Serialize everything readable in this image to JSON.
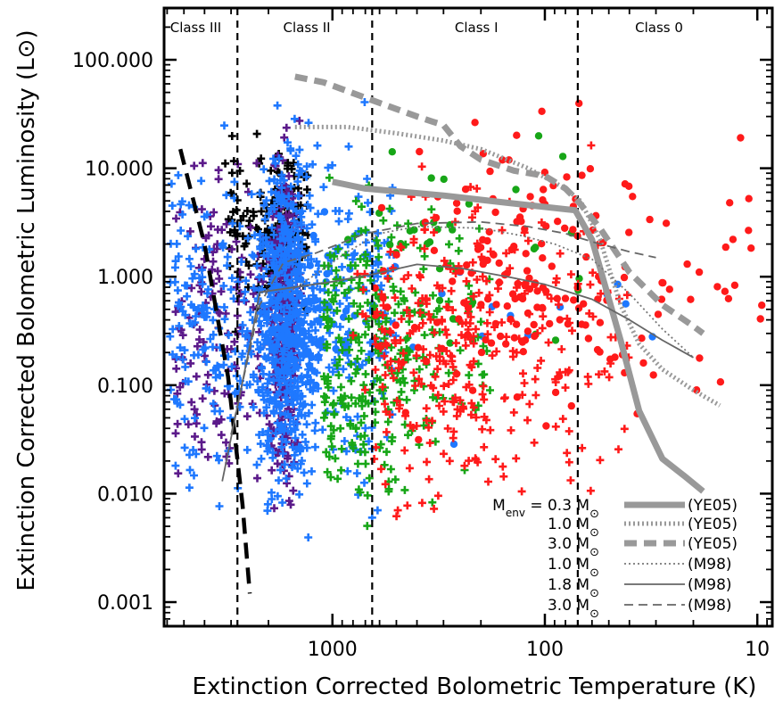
{
  "chart_data": {
    "type": "scatter",
    "title": "",
    "xlabel": "Extinction Corrected Bolometric Temperature (K)",
    "ylabel": "Extinction Corrected Bolometric Luminosity (L⊙)",
    "x_scale": "log",
    "x_reversed": true,
    "y_scale": "log",
    "xlim": [
      6200,
      8.5
    ],
    "ylim": [
      0.0006,
      300
    ],
    "x_ticks": [
      1000,
      100,
      10
    ],
    "x_tick_labels": [
      "1000",
      "100",
      "10"
    ],
    "y_ticks": [
      0.001,
      0.01,
      0.1,
      1,
      10,
      100
    ],
    "y_tick_labels": [
      "0.001",
      "0.010",
      "0.100",
      "1.000",
      "10.000",
      "100.000"
    ],
    "class_boundaries_K": [
      2800,
      650,
      70
    ],
    "class_labels": [
      {
        "text": "Class III",
        "tbol": 4400
      },
      {
        "text": "Class II",
        "tbol": 1320
      },
      {
        "text": "Class I",
        "tbol": 210
      },
      {
        "text": "Class 0",
        "tbol": 29
      }
    ],
    "colors": {
      "black_cross": "#000000",
      "purple_cross": "#5b1a8a",
      "blue_cross": "#1e78ff",
      "green_cross": "#17a617",
      "red": "#ff1a1a",
      "track": "#999999",
      "track_dark": "#666666"
    },
    "boundary_curve": {
      "style": "thick-dashed",
      "points": [
        [
          5200,
          15
        ],
        [
          4000,
          2
        ],
        [
          3100,
          0.12
        ],
        [
          2650,
          0.008
        ],
        [
          2450,
          0.0012
        ]
      ]
    },
    "tracks": [
      {
        "label": "(YE05)",
        "mass": "0.3",
        "style": "thick-solid",
        "points": [
          [
            1000,
            7.5
          ],
          [
            700,
            6.5
          ],
          [
            300,
            5.6
          ],
          [
            150,
            4.8
          ],
          [
            72,
            4.1
          ],
          [
            60,
            2.2
          ],
          [
            44,
            0.26
          ],
          [
            36,
            0.058
          ],
          [
            28,
            0.021
          ],
          [
            22,
            0.0145
          ],
          [
            18,
            0.0105
          ]
        ]
      },
      {
        "label": "(YE05)",
        "mass": "1.0",
        "style": "thick-dotted",
        "points": [
          [
            1500,
            24
          ],
          [
            850,
            24
          ],
          [
            500,
            21
          ],
          [
            300,
            18
          ],
          [
            200,
            15
          ],
          [
            120,
            10
          ],
          [
            80,
            6.5
          ],
          [
            68,
            5
          ],
          [
            55,
            2.2
          ],
          [
            44,
            0.55
          ],
          [
            36,
            0.24
          ],
          [
            28,
            0.14
          ],
          [
            20,
            0.09
          ],
          [
            15,
            0.065
          ]
        ]
      },
      {
        "label": "(YE05)",
        "mass": "3.0",
        "style": "thick-dashed",
        "points": [
          [
            1500,
            70
          ],
          [
            1100,
            62
          ],
          [
            600,
            40
          ],
          [
            400,
            30
          ],
          [
            340,
            27
          ],
          [
            300,
            25
          ],
          [
            250,
            16
          ],
          [
            200,
            12
          ],
          [
            140,
            9.5
          ],
          [
            100,
            8.5
          ],
          [
            80,
            6.5
          ],
          [
            70,
            5
          ],
          [
            55,
            2.8
          ],
          [
            40,
            1.1
          ],
          [
            28,
            0.55
          ],
          [
            20,
            0.35
          ],
          [
            18,
            0.3
          ]
        ]
      },
      {
        "label": "(M98)",
        "mass": "1.0",
        "style": "thin-dotted",
        "points": [
          [
            1600,
            0.72
          ],
          [
            1200,
            1.05
          ],
          [
            850,
            1.7
          ],
          [
            600,
            2.5
          ],
          [
            400,
            2.9
          ],
          [
            200,
            2.8
          ],
          [
            130,
            2.4
          ],
          [
            90,
            2
          ],
          [
            60,
            1.45
          ],
          [
            40,
            0.7
          ],
          [
            28,
            0.33
          ],
          [
            20,
            0.18
          ]
        ]
      },
      {
        "label": "(M98)",
        "mass": "1.8",
        "style": "thin-solid",
        "points": [
          [
            3300,
            0.013
          ],
          [
            2400,
            0.28
          ],
          [
            2200,
            0.72
          ],
          [
            1800,
            0.76
          ],
          [
            1000,
            0.9
          ],
          [
            650,
            1.05
          ],
          [
            400,
            1.3
          ],
          [
            250,
            1.2
          ],
          [
            150,
            1
          ],
          [
            100,
            0.85
          ],
          [
            60,
            0.62
          ],
          [
            40,
            0.4
          ],
          [
            28,
            0.26
          ],
          [
            20,
            0.18
          ]
        ]
      },
      {
        "label": "(M98)",
        "mass": "3.0",
        "style": "thin-dashed",
        "points": [
          [
            3000,
            0.035
          ],
          [
            2200,
            0.55
          ],
          [
            1700,
            1.35
          ],
          [
            1200,
            1.65
          ],
          [
            700,
            2.5
          ],
          [
            400,
            3.1
          ],
          [
            200,
            3.2
          ],
          [
            120,
            2.9
          ],
          [
            80,
            2.5
          ],
          [
            60,
            2.1
          ],
          [
            40,
            1.7
          ],
          [
            30,
            1.5
          ]
        ]
      }
    ],
    "legend": {
      "position": "bottom-right",
      "env_label": "M",
      "env_sub": "env",
      "equals": " = ",
      "unit": " M",
      "unit_symbol": "⊙"
    },
    "scatter_groups": [
      {
        "name": "black-crosses",
        "marker": "cross",
        "color": "#000000",
        "count": 260,
        "tbol_range": [
          3200,
          1300
        ],
        "lbol_range": [
          0.15,
          30
        ],
        "core_tbol": 1700,
        "core_width": 0.08
      },
      {
        "name": "purple-crosses",
        "marker": "cross",
        "color": "#5b1a8a",
        "count": 520,
        "tbol_range": [
          5500,
          1400
        ],
        "lbol_range": [
          0.003,
          60
        ],
        "core_tbol": 1700,
        "core_width": 0.05
      },
      {
        "name": "blue-crosses",
        "marker": "cross",
        "color": "#1e78ff",
        "count": 950,
        "tbol_range": [
          6000,
          500
        ],
        "lbol_range": [
          0.002,
          80
        ],
        "core_tbol": 1650,
        "core_width": 0.12
      },
      {
        "name": "blue-dots",
        "marker": "dot",
        "color": "#1e78ff",
        "count": 60,
        "tbol_range": [
          2000,
          30
        ],
        "lbol_range": [
          0.02,
          10
        ],
        "core_tbol": 1200,
        "core_width": 0.2
      },
      {
        "name": "green-crosses",
        "marker": "cross",
        "color": "#17a617",
        "count": 310,
        "tbol_range": [
          1100,
          180
        ],
        "lbol_range": [
          0.002,
          20
        ],
        "core_tbol": 700,
        "core_width": 0.25
      },
      {
        "name": "green-dots",
        "marker": "dot",
        "color": "#17a617",
        "count": 40,
        "tbol_range": [
          900,
          60
        ],
        "lbol_range": [
          0.05,
          70
        ],
        "core_tbol": 450,
        "core_width": 0.3
      },
      {
        "name": "red-crosses",
        "marker": "cross",
        "color": "#ff1a1a",
        "count": 330,
        "tbol_range": [
          800,
          40
        ],
        "lbol_range": [
          0.002,
          30
        ],
        "core_tbol": 300,
        "core_width": 0.3
      },
      {
        "name": "red-dots",
        "marker": "dot",
        "color": "#ff1a1a",
        "count": 190,
        "tbol_range": [
          650,
          9
        ],
        "lbol_range": [
          0.01,
          80
        ],
        "core_tbol": 120,
        "core_width": 0.4
      }
    ]
  }
}
